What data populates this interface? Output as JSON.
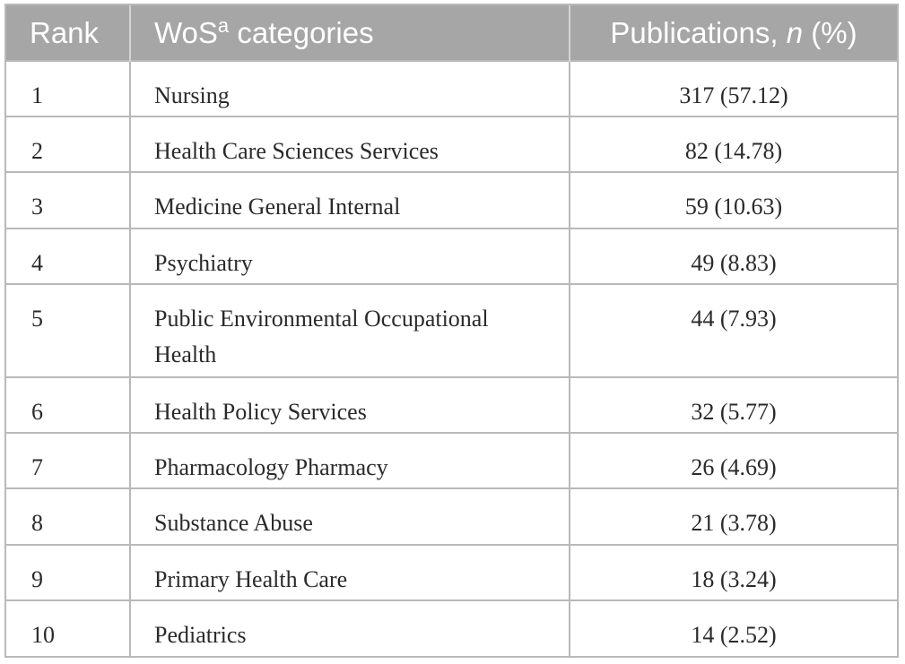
{
  "table": {
    "headers": {
      "rank": "Rank",
      "category_prefix": "WoS",
      "category_sup": "a",
      "category_suffix": " categories",
      "publications_prefix": "Publications, ",
      "publications_italic": "n",
      "publications_suffix": " (%)"
    },
    "rows": [
      {
        "rank": "1",
        "category": "Nursing",
        "publications": "317 (57.12)"
      },
      {
        "rank": "2",
        "category": "Health Care Sciences Services",
        "publications": "82 (14.78)"
      },
      {
        "rank": "3",
        "category": "Medicine General Internal",
        "publications": "59 (10.63)"
      },
      {
        "rank": "4",
        "category": "Psychiatry",
        "publications": "49 (8.83)"
      },
      {
        "rank": "5",
        "category_line1": "Public Environmental Occupational",
        "category_line2": "Health",
        "publications": "44 (7.93)"
      },
      {
        "rank": "6",
        "category": "Health Policy Services",
        "publications": "32 (5.77)"
      },
      {
        "rank": "7",
        "category": "Pharmacology Pharmacy",
        "publications": "26 (4.69)"
      },
      {
        "rank": "8",
        "category": "Substance Abuse",
        "publications": "21 (3.78)"
      },
      {
        "rank": "9",
        "category": "Primary Health Care",
        "publications": "18 (3.24)"
      },
      {
        "rank": "10",
        "category": "Pediatrics",
        "publications": "14 (2.52)"
      }
    ]
  },
  "colors": {
    "header_bg": "#a6a6a6",
    "header_text": "#ffffff",
    "border": "#b9b9b9",
    "body_text": "#2a2a2a"
  }
}
